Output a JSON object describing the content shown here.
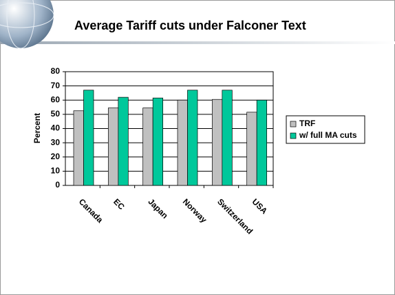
{
  "chart_data": {
    "type": "bar",
    "title": "Average Tariff cuts under Falconer Text",
    "y_label": "Percent",
    "categories": [
      "Canada",
      "EC",
      "Japan",
      "Norway",
      "Switzerland",
      "USA"
    ],
    "series": [
      {
        "name": "TRF",
        "color": "#c0c0c0",
        "values": [
          52.5,
          54.5,
          54.5,
          60,
          60.5,
          51.5
        ]
      },
      {
        "name": "w/ full MA cuts",
        "color": "#00c89b",
        "values": [
          67,
          62,
          61.5,
          67,
          67,
          60
        ]
      }
    ],
    "ylim": [
      0,
      80
    ],
    "yticks": [
      0,
      10,
      20,
      30,
      40,
      50,
      60,
      70,
      80
    ],
    "grid": true,
    "legend": "right"
  }
}
